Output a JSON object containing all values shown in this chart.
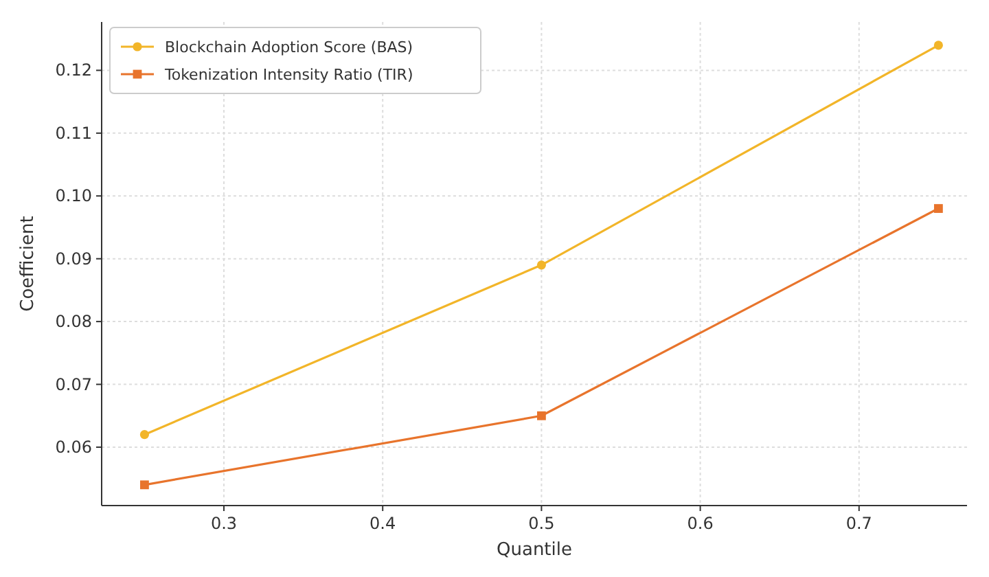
{
  "chart_data": {
    "type": "line",
    "xlabel": "Quantile",
    "ylabel": "Coefficient",
    "x": [
      0.25,
      0.5,
      0.75
    ],
    "series": [
      {
        "name": "Blockchain Adoption Score (BAS)",
        "color": "#f2b529",
        "values": [
          0.062,
          0.089,
          0.124
        ],
        "marker": "circle"
      },
      {
        "name": "Tokenization Intensity Ratio (TIR)",
        "color": "#e8742c",
        "values": [
          0.054,
          0.065,
          0.098
        ],
        "marker": "square"
      }
    ],
    "xlim": [
      0.223,
      0.768
    ],
    "ylim": [
      0.0507,
      0.1277
    ],
    "xticks": [
      {
        "value": 0.3,
        "label": "0.3"
      },
      {
        "value": 0.4,
        "label": "0.4"
      },
      {
        "value": 0.5,
        "label": "0.5"
      },
      {
        "value": 0.6,
        "label": "0.6"
      },
      {
        "value": 0.7,
        "label": "0.7"
      }
    ],
    "yticks": [
      {
        "value": 0.06,
        "label": "0.06"
      },
      {
        "value": 0.07,
        "label": "0.07"
      },
      {
        "value": 0.08,
        "label": "0.08"
      },
      {
        "value": 0.09,
        "label": "0.09"
      },
      {
        "value": 0.1,
        "label": "0.10"
      },
      {
        "value": 0.11,
        "label": "0.11"
      },
      {
        "value": 0.12,
        "label": "0.12"
      }
    ],
    "grid": true,
    "legend": "top left",
    "line_style": "solid"
  }
}
